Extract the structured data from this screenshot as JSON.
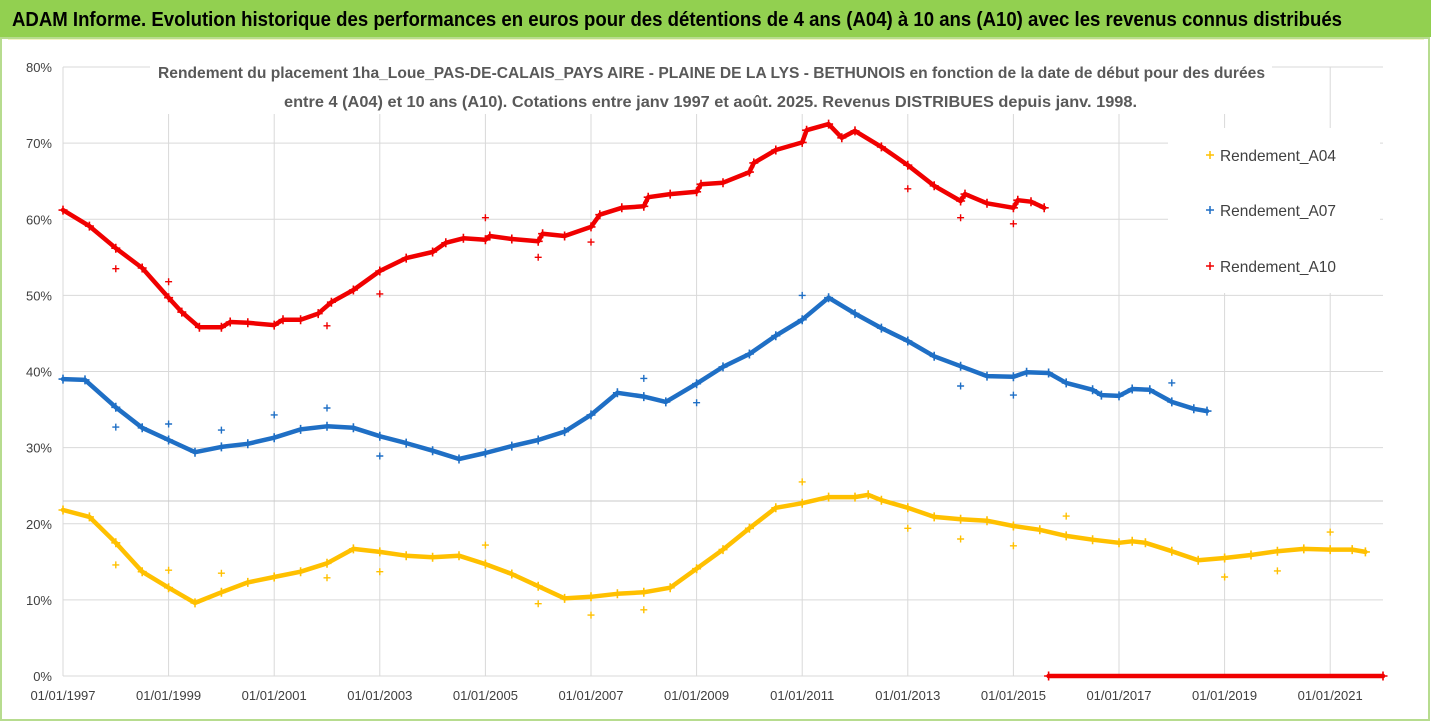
{
  "header": {
    "title": "ADAM Informe. Evolution historique des performances en euros pour des détentions de 4 ans (A04) à 10 ans (A10) avec les revenus connus distribués"
  },
  "colors": {
    "banner": "#92d050"
  },
  "chart_data": {
    "type": "scatter",
    "title": [
      "Rendement du placement 1ha_Loue_PAS-DE-CALAIS_PAYS AIRE - PLAINE DE LA LYS - BETHUNOIS en fonction de la date de début pour des durées",
      "entre 4 (A04) et 10 ans (A10). Cotations entre janv 1997 et août. 2025. Revenus DISTRIBUES depuis janv. 1998."
    ],
    "xlim": [
      "1997-01",
      "2022-01"
    ],
    "ylim": [
      0,
      80
    ],
    "xtick_labels": [
      "01/01/1997",
      "01/01/1999",
      "01/01/2001",
      "01/01/2003",
      "01/01/2005",
      "01/01/2007",
      "01/01/2009",
      "01/01/2011",
      "01/01/2013",
      "01/01/2015",
      "01/01/2017",
      "01/01/2019",
      "01/01/2021"
    ],
    "ytick_labels": [
      "0%",
      "10%",
      "20%",
      "30%",
      "40%",
      "50%",
      "60%",
      "70%",
      "80%"
    ],
    "grid": true,
    "legend": "right",
    "marker": "plus",
    "series": [
      {
        "name": "Rendement_A04",
        "color": "#ffc000",
        "segments": [
          [
            [
              "1997-01",
              21.8
            ],
            [
              "1997-07",
              20.9
            ],
            [
              "1998-01",
              17.5
            ],
            [
              "1998-07",
              13.7
            ],
            [
              "1999-01",
              11.6
            ],
            [
              "1999-07",
              9.6
            ],
            [
              "2000-01",
              11.0
            ],
            [
              "2000-07",
              12.3
            ],
            [
              "2001-01",
              13.0
            ],
            [
              "2001-07",
              13.7
            ],
            [
              "2002-01",
              14.8
            ],
            [
              "2002-07",
              16.7
            ],
            [
              "2003-01",
              16.3
            ],
            [
              "2003-07",
              15.8
            ],
            [
              "2004-01",
              15.6
            ],
            [
              "2004-07",
              15.8
            ],
            [
              "2005-01",
              14.7
            ],
            [
              "2005-07",
              13.4
            ],
            [
              "2006-01",
              11.8
            ],
            [
              "2006-07",
              10.2
            ],
            [
              "2007-01",
              10.4
            ],
            [
              "2007-07",
              10.8
            ],
            [
              "2008-01",
              11.0
            ],
            [
              "2008-07",
              11.6
            ],
            [
              "2009-01",
              14.1
            ],
            [
              "2009-07",
              16.6
            ],
            [
              "2010-01",
              19.4
            ],
            [
              "2010-07",
              22.1
            ],
            [
              "2011-01",
              22.7
            ],
            [
              "2011-07",
              23.5
            ],
            [
              "2012-01",
              23.5
            ],
            [
              "2012-04",
              23.8
            ],
            [
              "2012-07",
              23.1
            ],
            [
              "2013-01",
              22.1
            ],
            [
              "2013-07",
              20.9
            ],
            [
              "2014-01",
              20.6
            ],
            [
              "2014-07",
              20.4
            ],
            [
              "2015-01",
              19.7
            ],
            [
              "2015-07",
              19.2
            ],
            [
              "2016-01",
              18.4
            ],
            [
              "2016-07",
              17.9
            ],
            [
              "2017-01",
              17.5
            ],
            [
              "2017-04",
              17.7
            ],
            [
              "2017-07",
              17.5
            ],
            [
              "2018-01",
              16.4
            ],
            [
              "2018-07",
              15.2
            ],
            [
              "2019-01",
              15.5
            ],
            [
              "2019-07",
              15.9
            ],
            [
              "2020-01",
              16.4
            ],
            [
              "2020-07",
              16.7
            ],
            [
              "2021-01",
              16.6
            ],
            [
              "2021-06",
              16.6
            ],
            [
              "2021-09",
              16.3
            ]
          ]
        ],
        "isolated_points": [
          [
            "1998-01",
            14.6
          ],
          [
            "1999-01",
            13.9
          ],
          [
            "2000-01",
            13.5
          ],
          [
            "2002-01",
            12.9
          ],
          [
            "2003-01",
            13.7
          ],
          [
            "2005-01",
            17.2
          ],
          [
            "2006-01",
            9.5
          ],
          [
            "2007-01",
            8.0
          ],
          [
            "2008-01",
            8.7
          ],
          [
            "2011-01",
            25.5
          ],
          [
            "2013-01",
            19.4
          ],
          [
            "2014-01",
            18.0
          ],
          [
            "2015-01",
            17.1
          ],
          [
            "2016-01",
            21.0
          ],
          [
            "2019-01",
            13.0
          ],
          [
            "2020-01",
            13.8
          ],
          [
            "2021-01",
            18.9
          ]
        ]
      },
      {
        "name": "Rendement_A07",
        "color": "#1f6fc5",
        "segments": [
          [
            [
              "1997-01",
              39.0
            ],
            [
              "1997-06",
              38.9
            ],
            [
              "1998-01",
              35.3
            ],
            [
              "1998-07",
              32.6
            ],
            [
              "1999-01",
              31.0
            ],
            [
              "1999-07",
              29.4
            ],
            [
              "2000-01",
              30.1
            ],
            [
              "2000-07",
              30.5
            ],
            [
              "2001-01",
              31.3
            ],
            [
              "2001-07",
              32.4
            ],
            [
              "2002-01",
              32.8
            ],
            [
              "2002-07",
              32.6
            ],
            [
              "2003-01",
              31.5
            ],
            [
              "2003-07",
              30.6
            ],
            [
              "2004-01",
              29.6
            ],
            [
              "2004-07",
              28.5
            ],
            [
              "2005-01",
              29.3
            ],
            [
              "2005-07",
              30.2
            ],
            [
              "2006-01",
              31.0
            ],
            [
              "2006-07",
              32.1
            ],
            [
              "2007-01",
              34.3
            ],
            [
              "2007-07",
              37.2
            ],
            [
              "2008-01",
              36.7
            ],
            [
              "2008-06",
              36.0
            ],
            [
              "2009-01",
              38.4
            ],
            [
              "2009-07",
              40.6
            ],
            [
              "2010-01",
              42.3
            ],
            [
              "2010-07",
              44.7
            ],
            [
              "2011-01",
              46.8
            ],
            [
              "2011-07",
              49.7
            ],
            [
              "2012-01",
              47.6
            ],
            [
              "2012-07",
              45.7
            ],
            [
              "2013-01",
              44.0
            ],
            [
              "2013-07",
              42.0
            ],
            [
              "2014-01",
              40.7
            ],
            [
              "2014-07",
              39.4
            ],
            [
              "2015-01",
              39.3
            ],
            [
              "2015-04",
              39.9
            ],
            [
              "2015-09",
              39.8
            ],
            [
              "2016-01",
              38.5
            ],
            [
              "2016-07",
              37.6
            ],
            [
              "2016-09",
              36.9
            ],
            [
              "2017-01",
              36.8
            ],
            [
              "2017-04",
              37.7
            ],
            [
              "2017-08",
              37.6
            ],
            [
              "2018-01",
              36.0
            ],
            [
              "2018-06",
              35.1
            ],
            [
              "2018-09",
              34.8
            ]
          ]
        ],
        "isolated_points": [
          [
            "1998-01",
            32.7
          ],
          [
            "1999-01",
            33.1
          ],
          [
            "2000-01",
            32.3
          ],
          [
            "2001-01",
            34.3
          ],
          [
            "2002-01",
            35.2
          ],
          [
            "2003-01",
            28.9
          ],
          [
            "2008-01",
            39.1
          ],
          [
            "2009-01",
            35.9
          ],
          [
            "2011-01",
            50.0
          ],
          [
            "2014-01",
            38.1
          ],
          [
            "2015-01",
            36.9
          ],
          [
            "2018-01",
            38.5
          ]
        ]
      },
      {
        "name": "Rendement_A10",
        "color": "#f00000",
        "segments": [
          [
            [
              "1997-01",
              61.2
            ],
            [
              "1997-07",
              59.1
            ],
            [
              "1998-01",
              56.2
            ],
            [
              "1998-07",
              53.6
            ],
            [
              "1999-01",
              49.7
            ],
            [
              "1999-04",
              47.8
            ],
            [
              "1999-08",
              45.8
            ],
            [
              "2000-01",
              45.8
            ],
            [
              "2000-03",
              46.5
            ],
            [
              "2000-07",
              46.4
            ],
            [
              "2001-01",
              46.1
            ],
            [
              "2001-03",
              46.8
            ],
            [
              "2001-07",
              46.8
            ],
            [
              "2001-11",
              47.6
            ],
            [
              "2002-02",
              49.1
            ],
            [
              "2002-07",
              50.7
            ],
            [
              "2003-01",
              53.2
            ],
            [
              "2003-07",
              54.9
            ],
            [
              "2004-01",
              55.7
            ],
            [
              "2004-04",
              56.9
            ],
            [
              "2004-08",
              57.5
            ],
            [
              "2005-01",
              57.3
            ],
            [
              "2005-02",
              57.8
            ],
            [
              "2005-07",
              57.4
            ],
            [
              "2006-01",
              57.1
            ],
            [
              "2006-02",
              58.1
            ],
            [
              "2006-07",
              57.8
            ],
            [
              "2007-01",
              59.0
            ],
            [
              "2007-03",
              60.6
            ],
            [
              "2007-08",
              61.5
            ],
            [
              "2008-01",
              61.7
            ],
            [
              "2008-02",
              62.9
            ],
            [
              "2008-07",
              63.3
            ],
            [
              "2009-01",
              63.6
            ],
            [
              "2009-02",
              64.6
            ],
            [
              "2009-07",
              64.8
            ],
            [
              "2010-01",
              66.2
            ],
            [
              "2010-02",
              67.4
            ],
            [
              "2010-07",
              69.1
            ],
            [
              "2011-01",
              70.1
            ],
            [
              "2011-02",
              71.7
            ],
            [
              "2011-07",
              72.5
            ],
            [
              "2011-10",
              70.7
            ],
            [
              "2012-01",
              71.6
            ],
            [
              "2012-07",
              69.5
            ],
            [
              "2013-01",
              67.1
            ],
            [
              "2013-07",
              64.4
            ],
            [
              "2014-01",
              62.4
            ],
            [
              "2014-02",
              63.3
            ],
            [
              "2014-07",
              62.1
            ],
            [
              "2015-01",
              61.5
            ],
            [
              "2015-02",
              62.5
            ],
            [
              "2015-05",
              62.3
            ],
            [
              "2015-08",
              61.5
            ]
          ],
          [
            [
              "2015-09",
              0
            ],
            [
              "2022-01",
              0
            ]
          ]
        ],
        "isolated_points": [
          [
            "1998-01",
            53.5
          ],
          [
            "1999-01",
            51.8
          ],
          [
            "2002-01",
            46.0
          ],
          [
            "2003-01",
            50.2
          ],
          [
            "2005-01",
            60.2
          ],
          [
            "2006-01",
            55.0
          ],
          [
            "2007-01",
            57.0
          ],
          [
            "2013-01",
            64.0
          ],
          [
            "2014-01",
            60.2
          ],
          [
            "2015-01",
            59.4
          ]
        ]
      }
    ]
  }
}
